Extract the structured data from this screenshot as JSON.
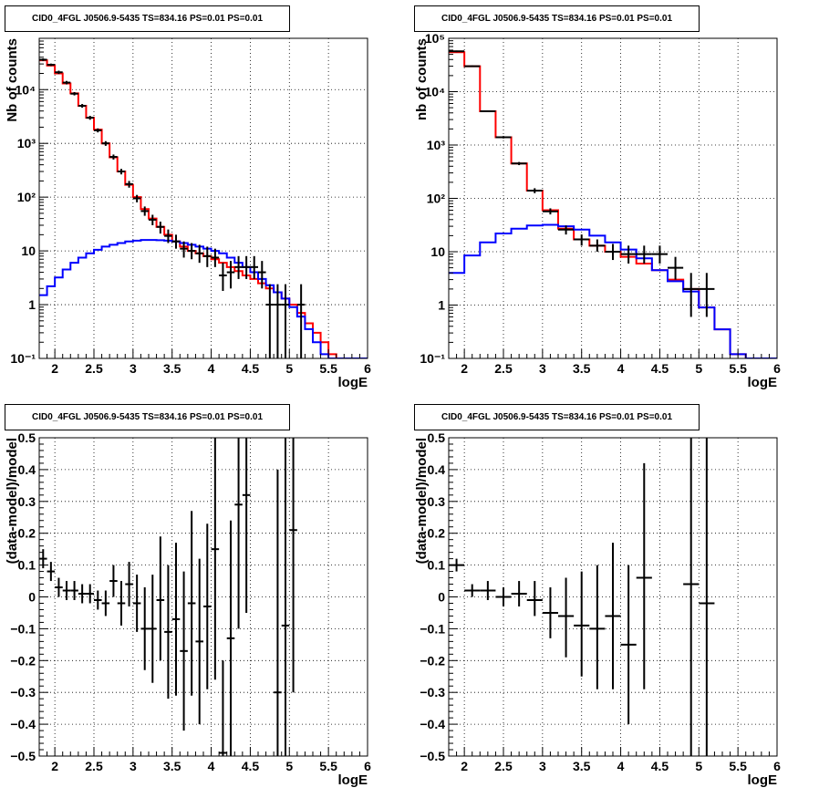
{
  "chart_data": [
    {
      "type": "step-histogram",
      "title": "CID0_4FGL J0506.9-5435 TS=834.16 PS=0.01 PS=0.01",
      "xlabel": "logE",
      "ylabel": "Nb of counts",
      "xlim": [
        1.8,
        6
      ],
      "ylim": [
        0.1,
        90000
      ],
      "yscale": "log",
      "grid": true,
      "xticks": [
        "2",
        "2.5",
        "3",
        "3.5",
        "4",
        "4.5",
        "5",
        "5.5",
        "6"
      ],
      "yticks": [
        "10⁻¹",
        "1",
        "10",
        "10²",
        "10³",
        "10⁴"
      ],
      "bin_edges": [
        1.8,
        1.9,
        2.0,
        2.1,
        2.2,
        2.3,
        2.4,
        2.5,
        2.6,
        2.7,
        2.8,
        2.9,
        3.0,
        3.1,
        3.2,
        3.3,
        3.4,
        3.5,
        3.6,
        3.7,
        3.8,
        3.9,
        4.0,
        4.1,
        4.2,
        4.3,
        4.4,
        4.5,
        4.6,
        4.7,
        4.8,
        4.9,
        5.0,
        5.1,
        5.2,
        5.3,
        5.4,
        5.5,
        5.6,
        5.7,
        5.8,
        5.9,
        6.0
      ],
      "series": [
        {
          "kind": "step",
          "color": "#ff0000",
          "values": [
            35000,
            28000,
            20000,
            13000,
            8500,
            5000,
            3000,
            1800,
            1000,
            550,
            300,
            170,
            100,
            60,
            40,
            28,
            20,
            15,
            12,
            10,
            9,
            8,
            7,
            6,
            5,
            4.2,
            3.5,
            3,
            2.5,
            2,
            1.7,
            1.3,
            1.0,
            0.7,
            0.45,
            0.3,
            0.2,
            0.12,
            0.1,
            0.1,
            0.1,
            0.1
          ]
        },
        {
          "kind": "step",
          "color": "#0000ff",
          "values": [
            1.5,
            2.2,
            3.2,
            4.5,
            6,
            7.5,
            9,
            10.5,
            12,
            13,
            14,
            15,
            15.5,
            16,
            16,
            15.8,
            15.5,
            15,
            14,
            13,
            12,
            11,
            10,
            9,
            7.5,
            6,
            5,
            4,
            3,
            2.3,
            1.7,
            1.3,
            0.9,
            0.6,
            0.35,
            0.2,
            0.12,
            0.1,
            0.1,
            0.1,
            0.1,
            0.1
          ]
        },
        {
          "kind": "points",
          "color": "#000000",
          "halfwidth": 0.05,
          "points": [
            {
              "x": 1.85,
              "y": 36000,
              "lo": 34000,
              "hi": 38000
            },
            {
              "x": 1.95,
              "y": 29000,
              "lo": 27500,
              "hi": 30500
            },
            {
              "x": 2.05,
              "y": 21000,
              "lo": 19500,
              "hi": 22500
            },
            {
              "x": 2.15,
              "y": 13500,
              "lo": 12500,
              "hi": 14500
            },
            {
              "x": 2.25,
              "y": 8400,
              "lo": 7800,
              "hi": 9000
            },
            {
              "x": 2.35,
              "y": 5000,
              "lo": 4600,
              "hi": 5400
            },
            {
              "x": 2.45,
              "y": 3000,
              "lo": 2750,
              "hi": 3250
            },
            {
              "x": 2.55,
              "y": 1750,
              "lo": 1600,
              "hi": 1900
            },
            {
              "x": 2.65,
              "y": 1000,
              "lo": 900,
              "hi": 1100
            },
            {
              "x": 2.75,
              "y": 560,
              "lo": 500,
              "hi": 620
            },
            {
              "x": 2.85,
              "y": 300,
              "lo": 265,
              "hi": 335
            },
            {
              "x": 2.95,
              "y": 175,
              "lo": 150,
              "hi": 200
            },
            {
              "x": 3.05,
              "y": 95,
              "lo": 80,
              "hi": 110
            },
            {
              "x": 3.15,
              "y": 55,
              "lo": 45,
              "hi": 67
            },
            {
              "x": 3.25,
              "y": 38,
              "lo": 30,
              "hi": 47
            },
            {
              "x": 3.35,
              "y": 28,
              "lo": 21,
              "hi": 35
            },
            {
              "x": 3.45,
              "y": 19,
              "lo": 14,
              "hi": 25
            },
            {
              "x": 3.55,
              "y": 15,
              "lo": 11,
              "hi": 20
            },
            {
              "x": 3.65,
              "y": 11,
              "lo": 7.5,
              "hi": 15
            },
            {
              "x": 3.75,
              "y": 10,
              "lo": 7,
              "hi": 14
            },
            {
              "x": 3.85,
              "y": 9,
              "lo": 6,
              "hi": 13
            },
            {
              "x": 3.95,
              "y": 8,
              "lo": 5,
              "hi": 12
            },
            {
              "x": 4.05,
              "y": 7.5,
              "lo": 5,
              "hi": 11
            },
            {
              "x": 4.15,
              "y": 3.5,
              "lo": 1.8,
              "hi": 6
            },
            {
              "x": 4.25,
              "y": 4,
              "lo": 2,
              "hi": 6.5
            },
            {
              "x": 4.35,
              "y": 5,
              "lo": 3,
              "hi": 8
            },
            {
              "x": 4.45,
              "y": 5,
              "lo": 3,
              "hi": 8
            },
            {
              "x": 4.55,
              "y": 5,
              "lo": 3,
              "hi": 8
            },
            {
              "x": 4.65,
              "y": 4,
              "lo": 2,
              "hi": 6.5
            },
            {
              "x": 4.75,
              "y": 1,
              "lo": 0.1,
              "hi": 2.4
            },
            {
              "x": 4.85,
              "y": 1,
              "lo": 0.1,
              "hi": 2.4
            },
            {
              "x": 4.95,
              "y": 1,
              "lo": 0.1,
              "hi": 2.4
            },
            {
              "x": 5.15,
              "y": 1,
              "lo": 0.1,
              "hi": 2.4
            }
          ]
        }
      ]
    },
    {
      "type": "step-histogram",
      "title": "CID0_4FGL J0506.9-5435 TS=834.16 PS=0.01 PS=0.01",
      "xlabel": "logE",
      "ylabel": "nb of counts",
      "xlim": [
        1.8,
        6
      ],
      "ylim": [
        0.1,
        100000
      ],
      "yscale": "log",
      "grid": true,
      "xticks": [
        "2",
        "2.5",
        "3",
        "3.5",
        "4",
        "4.5",
        "5",
        "5.5",
        "6"
      ],
      "yticks": [
        "10⁻¹",
        "1",
        "10",
        "10²",
        "10³",
        "10⁴",
        "10⁵"
      ],
      "bin_edges": [
        1.8,
        2.0,
        2.2,
        2.4,
        2.6,
        2.8,
        3.0,
        3.2,
        3.4,
        3.6,
        3.8,
        4.0,
        4.2,
        4.4,
        4.6,
        4.8,
        5.0,
        5.2,
        5.4,
        5.6,
        5.8,
        6.0
      ],
      "series": [
        {
          "kind": "step",
          "color": "#ff0000",
          "values": [
            55000,
            30000,
            4300,
            1400,
            450,
            140,
            60,
            27,
            17,
            13,
            10,
            8,
            6,
            4.5,
            3,
            2,
            0.9,
            0.35,
            0.12,
            0.1,
            0.1
          ]
        },
        {
          "kind": "step",
          "color": "#0000ff",
          "values": [
            4,
            8.5,
            15,
            22,
            27,
            31,
            32,
            30,
            26,
            20,
            15,
            11,
            7.5,
            4.5,
            2.8,
            1.8,
            0.9,
            0.35,
            0.12,
            0.1,
            0.1
          ]
        },
        {
          "kind": "points",
          "color": "#000000",
          "halfwidth": 0.1,
          "points": [
            {
              "x": 1.9,
              "y": 57000,
              "lo": 55000,
              "hi": 59000
            },
            {
              "x": 2.1,
              "y": 30000,
              "lo": 29000,
              "hi": 31000
            },
            {
              "x": 2.3,
              "y": 4300,
              "lo": 4150,
              "hi": 4450
            },
            {
              "x": 2.5,
              "y": 1400,
              "lo": 1330,
              "hi": 1470
            },
            {
              "x": 2.7,
              "y": 450,
              "lo": 420,
              "hi": 480
            },
            {
              "x": 2.9,
              "y": 140,
              "lo": 125,
              "hi": 155
            },
            {
              "x": 3.1,
              "y": 57,
              "lo": 50,
              "hi": 65
            },
            {
              "x": 3.3,
              "y": 26,
              "lo": 21,
              "hi": 31
            },
            {
              "x": 3.5,
              "y": 17,
              "lo": 13,
              "hi": 21
            },
            {
              "x": 3.7,
              "y": 13,
              "lo": 10,
              "hi": 17
            },
            {
              "x": 3.9,
              "y": 10,
              "lo": 7,
              "hi": 14
            },
            {
              "x": 4.1,
              "y": 9,
              "lo": 6,
              "hi": 13
            },
            {
              "x": 4.3,
              "y": 9,
              "lo": 6,
              "hi": 13
            },
            {
              "x": 4.5,
              "y": 9,
              "lo": 6,
              "hi": 13
            },
            {
              "x": 4.7,
              "y": 5,
              "lo": 3,
              "hi": 8
            },
            {
              "x": 4.9,
              "y": 2,
              "lo": 0.6,
              "hi": 4
            },
            {
              "x": 5.1,
              "y": 2,
              "lo": 0.6,
              "hi": 4
            }
          ]
        }
      ]
    },
    {
      "type": "scatter-errorbar",
      "title": "CID0_4FGL J0506.9-5435 TS=834.16 PS=0.01 PS=0.01",
      "xlabel": "logE",
      "ylabel": "(data-model)/model",
      "xlim": [
        1.8,
        6
      ],
      "ylim": [
        -0.5,
        0.5
      ],
      "grid": true,
      "xticks": [
        "2",
        "2.5",
        "3",
        "3.5",
        "4",
        "4.5",
        "5",
        "5.5",
        "6"
      ],
      "yticks": [
        "−0.5",
        "−0.4",
        "−0.3",
        "−0.2",
        "−0.1",
        "0",
        "0.1",
        "0.2",
        "0.3",
        "0.4",
        "0.5"
      ],
      "series": [
        {
          "kind": "points",
          "color": "#000000",
          "halfwidth": 0.05,
          "points": [
            {
              "x": 1.85,
              "y": 0.12,
              "lo": 0.09,
              "hi": 0.15
            },
            {
              "x": 1.95,
              "y": 0.08,
              "lo": 0.05,
              "hi": 0.11
            },
            {
              "x": 2.05,
              "y": 0.03,
              "lo": 0.0,
              "hi": 0.06
            },
            {
              "x": 2.15,
              "y": 0.02,
              "lo": -0.01,
              "hi": 0.05
            },
            {
              "x": 2.25,
              "y": 0.02,
              "lo": -0.01,
              "hi": 0.05
            },
            {
              "x": 2.35,
              "y": 0.01,
              "lo": -0.02,
              "hi": 0.04
            },
            {
              "x": 2.45,
              "y": 0.01,
              "lo": -0.02,
              "hi": 0.04
            },
            {
              "x": 2.55,
              "y": -0.01,
              "lo": -0.04,
              "hi": 0.02
            },
            {
              "x": 2.65,
              "y": -0.02,
              "lo": -0.06,
              "hi": 0.02
            },
            {
              "x": 2.75,
              "y": 0.05,
              "lo": 0.0,
              "hi": 0.1
            },
            {
              "x": 2.85,
              "y": -0.02,
              "lo": -0.09,
              "hi": 0.05
            },
            {
              "x": 2.95,
              "y": 0.04,
              "lo": -0.03,
              "hi": 0.11
            },
            {
              "x": 3.05,
              "y": -0.02,
              "lo": -0.11,
              "hi": 0.07
            },
            {
              "x": 3.15,
              "y": -0.1,
              "lo": -0.23,
              "hi": 0.03
            },
            {
              "x": 3.25,
              "y": -0.1,
              "lo": -0.27,
              "hi": 0.07
            },
            {
              "x": 3.35,
              "y": -0.01,
              "lo": -0.2,
              "hi": 0.19
            },
            {
              "x": 3.45,
              "y": -0.11,
              "lo": -0.32,
              "hi": 0.1
            },
            {
              "x": 3.55,
              "y": -0.07,
              "lo": -0.31,
              "hi": 0.17
            },
            {
              "x": 3.65,
              "y": -0.17,
              "lo": -0.42,
              "hi": 0.08
            },
            {
              "x": 3.75,
              "y": -0.02,
              "lo": -0.31,
              "hi": 0.27
            },
            {
              "x": 3.85,
              "y": -0.14,
              "lo": -0.4,
              "hi": 0.12
            },
            {
              "x": 3.95,
              "y": -0.03,
              "lo": -0.29,
              "hi": 0.23
            },
            {
              "x": 4.05,
              "y": 0.15,
              "lo": -0.26,
              "hi": 0.56
            },
            {
              "x": 4.15,
              "y": -0.49,
              "lo": -0.6,
              "hi": -0.2
            },
            {
              "x": 4.25,
              "y": -0.13,
              "lo": -0.5,
              "hi": 0.24
            },
            {
              "x": 4.35,
              "y": 0.29,
              "lo": -0.1,
              "hi": 0.68
            },
            {
              "x": 4.45,
              "y": 0.32,
              "lo": -0.05,
              "hi": 0.69
            },
            {
              "x": 4.85,
              "y": -0.3,
              "lo": -0.8,
              "hi": 0.4
            },
            {
              "x": 4.95,
              "y": -0.09,
              "lo": -0.6,
              "hi": 0.6
            },
            {
              "x": 5.05,
              "y": 0.21,
              "lo": -0.3,
              "hi": 0.7
            }
          ]
        }
      ]
    },
    {
      "type": "scatter-errorbar",
      "title": "CID0_4FGL J0506.9-5435 TS=834.16 PS=0.01 PS=0.01",
      "xlabel": "logE",
      "ylabel": "(data-model)/model",
      "xlim": [
        1.8,
        6
      ],
      "ylim": [
        -0.5,
        0.5
      ],
      "grid": true,
      "xticks": [
        "2",
        "2.5",
        "3",
        "3.5",
        "4",
        "4.5",
        "5",
        "5.5",
        "6"
      ],
      "yticks": [
        "−0.5",
        "−0.4",
        "−0.3",
        "−0.2",
        "−0.1",
        "0",
        "0.1",
        "0.2",
        "0.3",
        "0.4",
        "0.5"
      ],
      "series": [
        {
          "kind": "points",
          "color": "#000000",
          "halfwidth": 0.1,
          "points": [
            {
              "x": 1.9,
              "y": 0.1,
              "lo": 0.08,
              "hi": 0.12
            },
            {
              "x": 2.1,
              "y": 0.02,
              "lo": 0.0,
              "hi": 0.04
            },
            {
              "x": 2.3,
              "y": 0.02,
              "lo": -0.01,
              "hi": 0.05
            },
            {
              "x": 2.5,
              "y": 0.0,
              "lo": -0.03,
              "hi": 0.03
            },
            {
              "x": 2.7,
              "y": 0.01,
              "lo": -0.03,
              "hi": 0.05
            },
            {
              "x": 2.9,
              "y": -0.01,
              "lo": -0.06,
              "hi": 0.05
            },
            {
              "x": 3.1,
              "y": -0.05,
              "lo": -0.13,
              "hi": 0.03
            },
            {
              "x": 3.3,
              "y": -0.06,
              "lo": -0.19,
              "hi": 0.06
            },
            {
              "x": 3.5,
              "y": -0.09,
              "lo": -0.25,
              "hi": 0.08
            },
            {
              "x": 3.7,
              "y": -0.1,
              "lo": -0.29,
              "hi": 0.1
            },
            {
              "x": 3.9,
              "y": -0.06,
              "lo": -0.29,
              "hi": 0.17
            },
            {
              "x": 4.1,
              "y": -0.15,
              "lo": -0.4,
              "hi": 0.1
            },
            {
              "x": 4.3,
              "y": 0.06,
              "lo": -0.29,
              "hi": 0.42
            },
            {
              "x": 4.9,
              "y": 0.04,
              "lo": -0.6,
              "hi": 0.6
            },
            {
              "x": 5.1,
              "y": -0.02,
              "lo": -0.6,
              "hi": 0.6
            }
          ]
        }
      ]
    }
  ]
}
